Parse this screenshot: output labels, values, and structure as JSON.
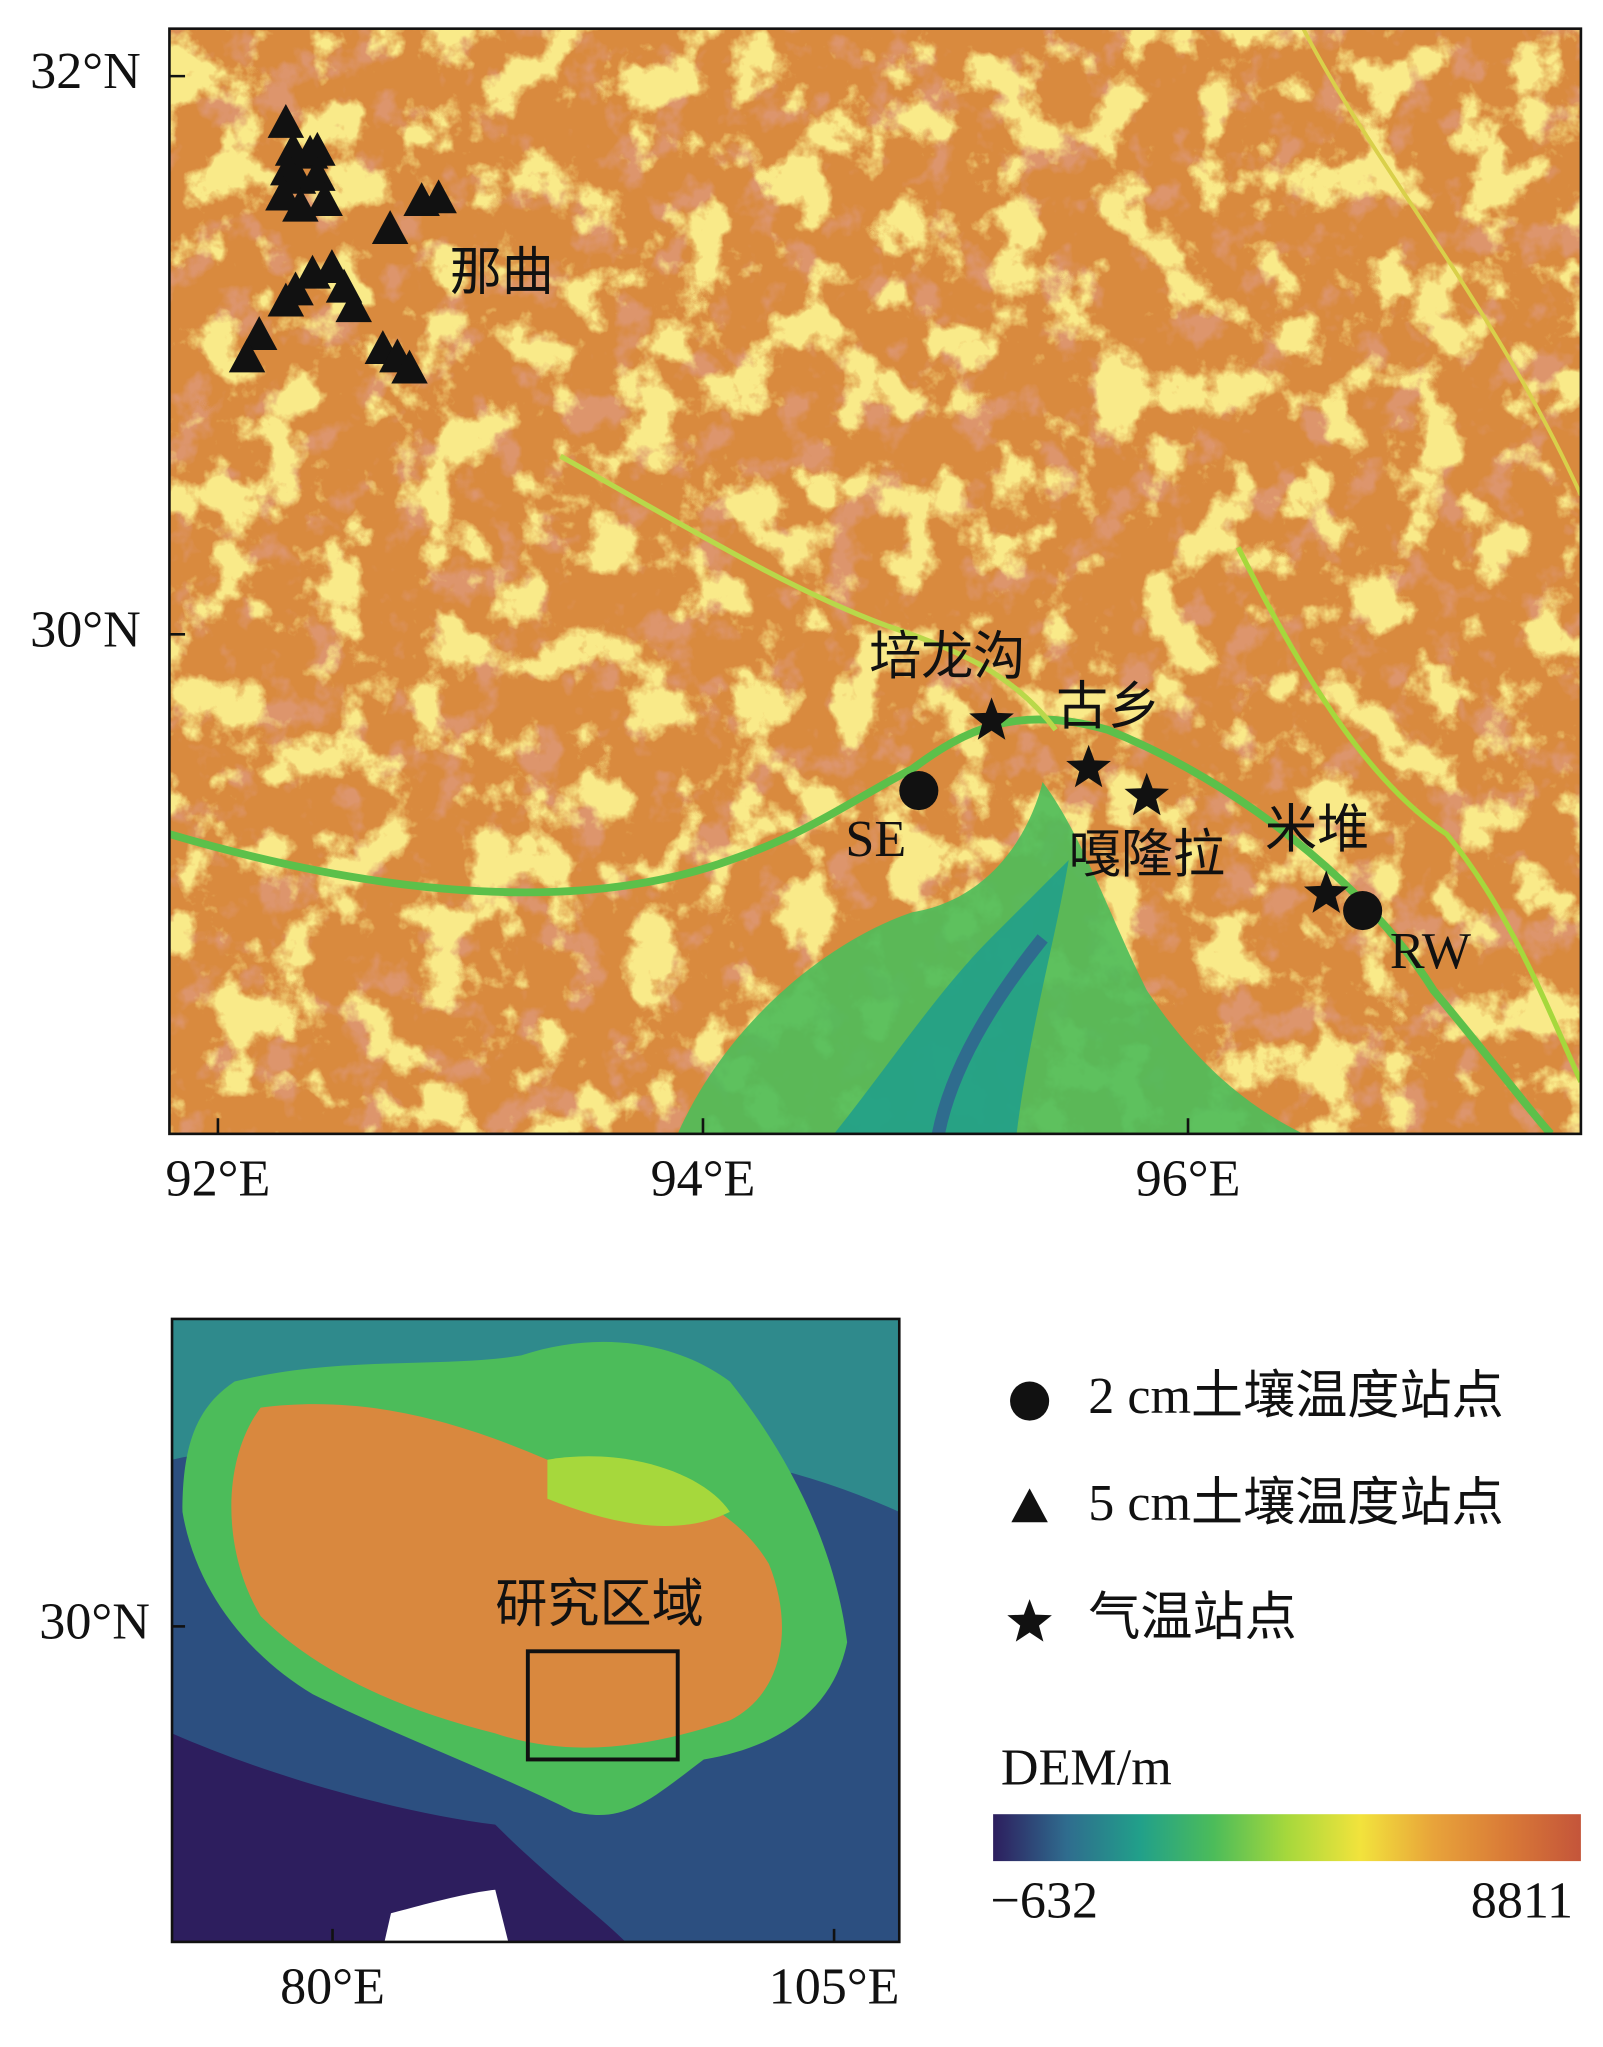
{
  "main_map": {
    "xlim": [
      91.8,
      97.62
    ],
    "ylim": [
      28.21,
      32.17
    ],
    "xticks": [
      {
        "value": 92,
        "label": "92°E"
      },
      {
        "value": 94,
        "label": "94°E"
      },
      {
        "value": 96,
        "label": "96°E"
      }
    ],
    "yticks": [
      {
        "value": 32,
        "label": "32°N"
      },
      {
        "value": 30,
        "label": "30°N"
      }
    ],
    "region_label": "那曲",
    "stations": [
      {
        "symbol": "circle",
        "label": "SE",
        "lon": 94.89,
        "lat": 29.44
      },
      {
        "symbol": "circle",
        "label": "RW",
        "lon": 96.72,
        "lat": 29.01
      },
      {
        "symbol": "star",
        "label": "培龙沟",
        "lon": 95.19,
        "lat": 29.69
      },
      {
        "symbol": "star",
        "label": "古乡",
        "lon": 95.59,
        "lat": 29.52
      },
      {
        "symbol": "star",
        "label": "嘎隆拉",
        "lon": 95.83,
        "lat": 29.42
      },
      {
        "symbol": "star",
        "label": "米堆",
        "lon": 96.57,
        "lat": 29.07
      }
    ],
    "naqu_sites": [
      {
        "lon": 92.28,
        "lat": 31.83
      },
      {
        "lon": 92.31,
        "lat": 31.73
      },
      {
        "lon": 92.38,
        "lat": 31.72
      },
      {
        "lon": 92.41,
        "lat": 31.73
      },
      {
        "lon": 92.29,
        "lat": 31.66
      },
      {
        "lon": 92.33,
        "lat": 31.63
      },
      {
        "lon": 92.41,
        "lat": 31.64
      },
      {
        "lon": 92.44,
        "lat": 31.55
      },
      {
        "lon": 92.27,
        "lat": 31.57
      },
      {
        "lon": 92.34,
        "lat": 31.53
      },
      {
        "lon": 92.71,
        "lat": 31.45
      },
      {
        "lon": 92.84,
        "lat": 31.55
      },
      {
        "lon": 92.91,
        "lat": 31.56
      },
      {
        "lon": 92.47,
        "lat": 31.31
      },
      {
        "lon": 92.39,
        "lat": 31.29
      },
      {
        "lon": 92.32,
        "lat": 31.23
      },
      {
        "lon": 92.28,
        "lat": 31.19
      },
      {
        "lon": 92.52,
        "lat": 31.24
      },
      {
        "lon": 92.56,
        "lat": 31.17
      },
      {
        "lon": 92.17,
        "lat": 31.07
      },
      {
        "lon": 92.12,
        "lat": 30.99
      },
      {
        "lon": 92.68,
        "lat": 31.02
      },
      {
        "lon": 92.74,
        "lat": 30.99
      },
      {
        "lon": 92.79,
        "lat": 30.95
      }
    ]
  },
  "inset_map": {
    "xlim": [
      72.0,
      108.25
    ],
    "ylim": [
      18.3,
      41.4
    ],
    "xticks": [
      {
        "value": 80,
        "label": "80°E"
      },
      {
        "value": 105,
        "label": "105°E"
      }
    ],
    "yticks": [
      {
        "value": 30,
        "label": "30°N"
      }
    ],
    "box_label": "研究区域"
  },
  "legend": [
    {
      "symbol": "circle",
      "label": "2 cm土壤温度站点"
    },
    {
      "symbol": "triangle",
      "label": "5 cm土壤温度站点"
    },
    {
      "symbol": "star",
      "label": "气温站点"
    }
  ],
  "colorbar": {
    "title": "DEM/m",
    "min": {
      "value": -632,
      "label": "−632"
    },
    "max": 8811,
    "colormap": [
      "#2d1e5e",
      "#2f6c8e",
      "#21a08a",
      "#4cbc5a",
      "#a6d83c",
      "#f2e33c",
      "#e8a33a",
      "#d97a37",
      "#c4553a"
    ]
  }
}
